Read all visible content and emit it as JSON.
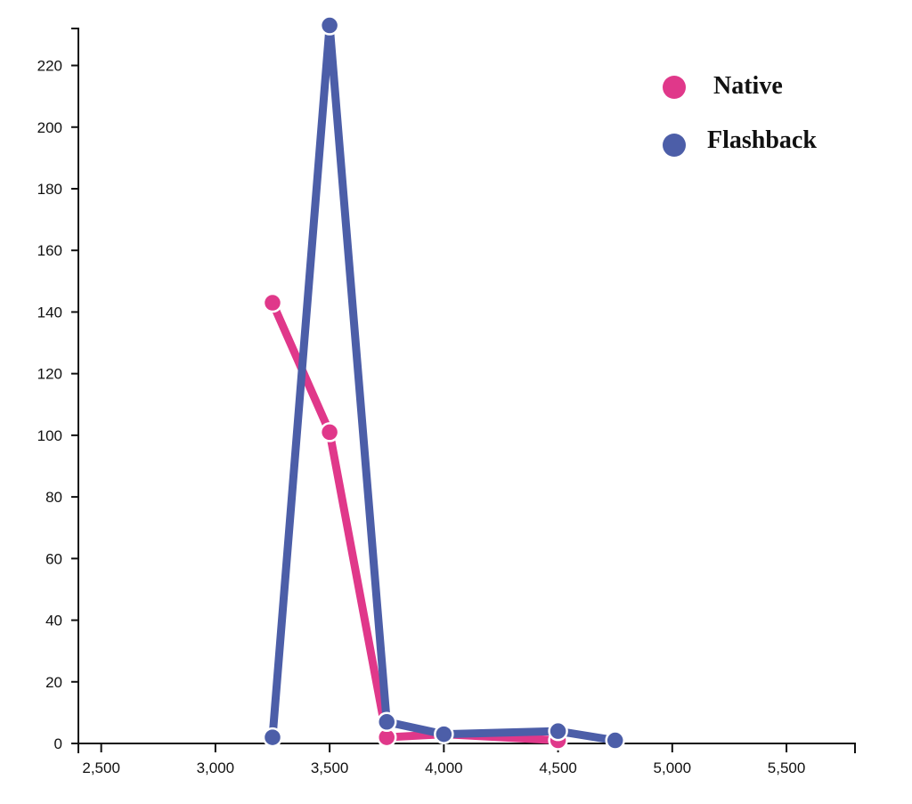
{
  "chart_data": {
    "type": "line",
    "title": "",
    "xlabel": "",
    "ylabel": "",
    "xlim": [
      2400,
      5800
    ],
    "ylim": [
      0,
      232
    ],
    "x_ticks": [
      "2,500",
      "3,000",
      "3,500",
      "4,000",
      "4,500",
      "5,000",
      "5,500"
    ],
    "x_tick_values": [
      2500,
      3000,
      3500,
      4000,
      4500,
      5000,
      5500
    ],
    "y_ticks": [
      "0",
      "20",
      "40",
      "60",
      "80",
      "100",
      "120",
      "140",
      "160",
      "180",
      "200",
      "220"
    ],
    "y_tick_values": [
      0,
      20,
      40,
      60,
      80,
      100,
      120,
      140,
      160,
      180,
      200,
      220
    ],
    "grid": false,
    "legend_position": "top-right",
    "series": [
      {
        "name": "Native",
        "color": "#e0388a",
        "x": [
          3250,
          3500,
          3750,
          4000,
          4500
        ],
        "y": [
          143,
          101,
          2,
          3,
          1
        ]
      },
      {
        "name": "Flashback",
        "color": "#4c5ea8",
        "x": [
          3250,
          3500,
          3750,
          4000,
          4500,
          4750
        ],
        "y": [
          2,
          233,
          7,
          3,
          4,
          1
        ]
      }
    ]
  }
}
